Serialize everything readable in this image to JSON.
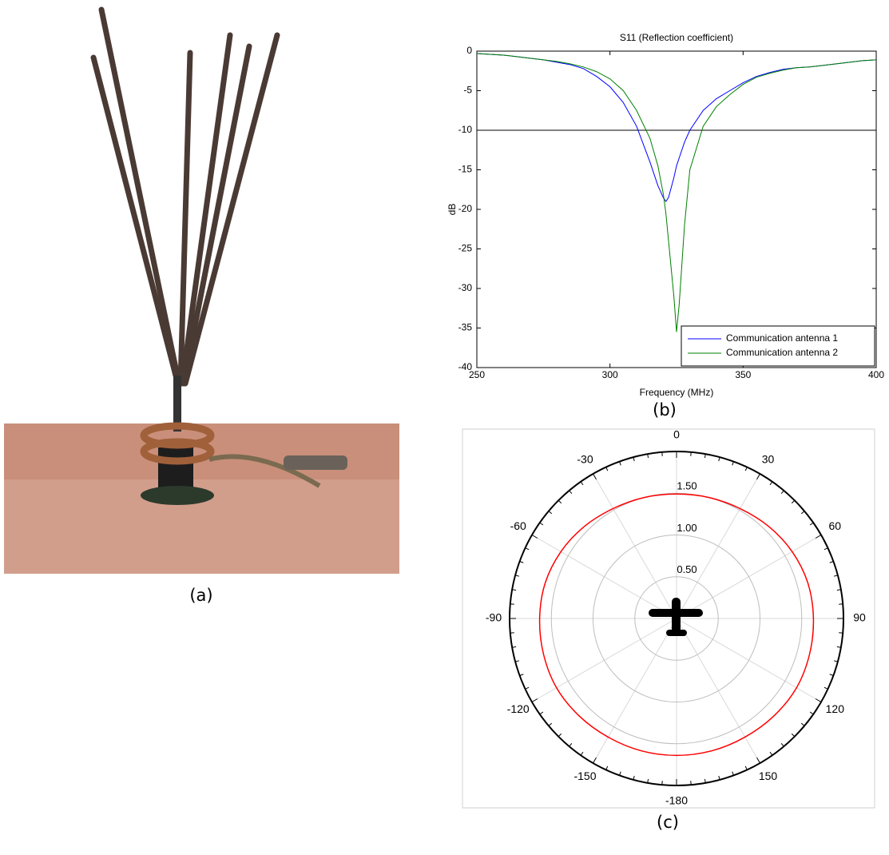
{
  "captions": [
    "(a)",
    "(b)",
    "(c)"
  ],
  "chart_data": [
    {
      "type": "line",
      "title": "S11 (Reflection coefficient)",
      "x_label": "Frequency (MHz)",
      "y_label": "dB",
      "x": [
        250,
        255,
        260,
        265,
        270,
        275,
        280,
        285,
        290,
        295,
        300,
        305,
        310,
        315,
        318,
        320,
        321,
        322,
        324,
        325,
        326,
        328,
        330,
        335,
        340,
        345,
        350,
        355,
        360,
        365,
        370,
        375,
        380,
        385,
        390,
        395,
        400
      ],
      "series": [
        {
          "name": "Communication antenna 1",
          "color": "#0000ff",
          "values": [
            -0.3,
            -0.4,
            -0.5,
            -0.7,
            -0.9,
            -1.1,
            -1.4,
            -1.7,
            -2.2,
            -3.2,
            -4.5,
            -6.5,
            -9.5,
            -14,
            -17,
            -18.5,
            -19,
            -18.5,
            -16,
            -14.5,
            -13.5,
            -11.5,
            -10,
            -7.5,
            -6,
            -5,
            -4,
            -3.2,
            -2.7,
            -2.3,
            -2.1,
            -2,
            -1.8,
            -1.6,
            -1.4,
            -1.2,
            -1.1
          ]
        },
        {
          "name": "Communication antenna 2",
          "color": "#008000",
          "values": [
            -0.3,
            -0.4,
            -0.5,
            -0.7,
            -0.9,
            -1.1,
            -1.3,
            -1.6,
            -2,
            -2.6,
            -3.5,
            -5,
            -7.5,
            -11,
            -14.5,
            -18,
            -20.5,
            -24,
            -31,
            -35.5,
            -32,
            -22,
            -15,
            -9.5,
            -7,
            -5.5,
            -4.2,
            -3.3,
            -2.8,
            -2.4,
            -2.1,
            -2,
            -1.8,
            -1.6,
            -1.4,
            -1.2,
            -1.1
          ]
        }
      ],
      "hline": -10,
      "xlim": [
        250,
        400
      ],
      "xticks": [
        250,
        300,
        350,
        400
      ],
      "ylim": [
        -40,
        0
      ],
      "yticks": [
        0,
        -5,
        -10,
        -15,
        -20,
        -25,
        -30,
        -35,
        -40
      ],
      "legend": "lower right"
    },
    {
      "type": "polar",
      "theta": [
        0,
        15,
        30,
        45,
        60,
        75,
        90,
        105,
        120,
        135,
        150,
        165,
        180,
        -165,
        -150,
        -135,
        -120,
        -105,
        -90,
        -75,
        -60,
        -45,
        -30,
        -15
      ],
      "values": [
        1.49,
        1.5,
        1.52,
        1.56,
        1.6,
        1.63,
        1.64,
        1.65,
        1.66,
        1.65,
        1.64,
        1.64,
        1.64,
        1.64,
        1.64,
        1.65,
        1.66,
        1.65,
        1.64,
        1.63,
        1.6,
        1.56,
        1.52,
        1.5
      ],
      "color": "#ff0000",
      "rlim": [
        0,
        2
      ],
      "rticks": [
        {
          "value": 0.5,
          "label": "0.50"
        },
        {
          "value": 1,
          "label": "1.00"
        },
        {
          "value": 1.5,
          "label": "1.50"
        }
      ],
      "angle_ticks": [
        0,
        30,
        60,
        90,
        120,
        150,
        -180,
        -150,
        -120,
        -90,
        -60,
        -30
      ]
    }
  ]
}
